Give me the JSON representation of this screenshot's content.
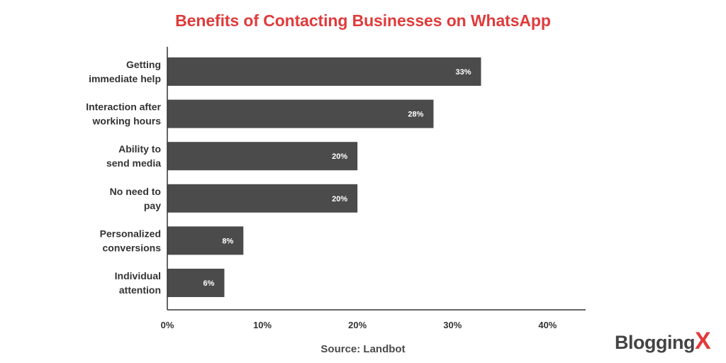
{
  "brand": {
    "name": "Blogging",
    "mark": "X",
    "accent_color": "#e03b3b",
    "text_color": "#444444"
  },
  "source": "Source: Landbot",
  "chart_data": {
    "type": "bar",
    "orientation": "horizontal",
    "title": "Benefits of Contacting Businesses on WhatsApp",
    "xlabel": "",
    "ylabel": "",
    "categories": [
      [
        "Getting",
        "immediate help"
      ],
      [
        "Interaction after",
        "working hours"
      ],
      [
        "Ability to",
        "send media"
      ],
      [
        "No need to",
        "pay"
      ],
      [
        "Personalized",
        "conversions"
      ],
      [
        "Individual",
        "attention"
      ]
    ],
    "values": [
      33,
      28,
      20,
      20,
      8,
      6
    ],
    "data_labels": [
      "33%",
      "28%",
      "20%",
      "20%",
      "8%",
      "6%"
    ],
    "xlim": [
      0,
      44
    ],
    "x_ticks": [
      0,
      10,
      20,
      30,
      40
    ],
    "x_tick_labels": [
      "0%",
      "10%",
      "20%",
      "30%",
      "40%"
    ],
    "bar_color": "#4b4b4b",
    "title_color": "#e03b3b",
    "grid": false,
    "legend": "none"
  }
}
